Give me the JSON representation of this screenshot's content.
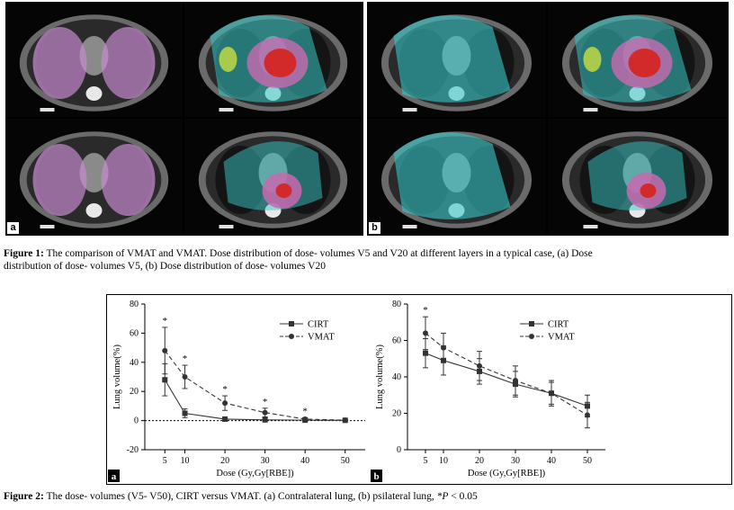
{
  "figure1": {
    "panels": [
      {
        "label": "a",
        "tiles": 4
      },
      {
        "label": "b",
        "tiles": 4
      }
    ],
    "caption_label": "Figure 1:",
    "caption_line1": " The comparison of VMAT and VMAT. Dose distribution of dose-   volumes V5 and V20 at different layers in a typical case, (a) Dose",
    "caption_line2": "distribution of dose-   volumes V5, (b) Dose distribution of dose-   volumes V20"
  },
  "figure2": {
    "caption_label": "Figure 2:",
    "caption_text": " The dose-   volumes (V5-   V50), CIRT versus VMAT. (a) Contralateral lung, (b) psilateral lung, ",
    "caption_p": "*P",
    "caption_tail": " < 0.05"
  },
  "chart_data": [
    {
      "type": "line",
      "panel_label": "a",
      "xlabel": "Dose (Gy,Gy[RBE])",
      "ylabel": "Lung volume(%)",
      "x": [
        5,
        10,
        20,
        30,
        40,
        50
      ],
      "xlim": [
        0,
        55
      ],
      "ylim": [
        -20,
        80
      ],
      "yticks": [
        -20,
        0,
        20,
        40,
        60,
        80
      ],
      "xticks": [
        5,
        10,
        20,
        30,
        40,
        50
      ],
      "legend": "top-right",
      "reference_line": 0,
      "significance_marks": [
        "*",
        "*",
        "*",
        "*",
        "*",
        ""
      ],
      "series": [
        {
          "name": "CIRT",
          "marker": "square",
          "style": "solid",
          "values": [
            28,
            5,
            1,
            0.5,
            0.3,
            0.2
          ],
          "err": [
            11,
            3,
            1,
            0.5,
            0.3,
            0.2
          ]
        },
        {
          "name": "VMAT",
          "marker": "circle",
          "style": "dashed",
          "values": [
            48,
            30,
            12,
            5.5,
            1,
            0.3
          ],
          "err": [
            16,
            8,
            5,
            3,
            1,
            0.3
          ]
        }
      ]
    },
    {
      "type": "line",
      "panel_label": "b",
      "xlabel": "Dose (Gy,Gy[RBE])",
      "ylabel": "Lung volume(%)",
      "x": [
        5,
        10,
        20,
        30,
        40,
        50
      ],
      "xlim": [
        0,
        55
      ],
      "ylim": [
        0,
        80
      ],
      "yticks": [
        0,
        20,
        40,
        60,
        80
      ],
      "xticks": [
        5,
        10,
        20,
        30,
        40,
        50
      ],
      "legend": "top-right",
      "significance_marks": [
        "*",
        "",
        "",
        "",
        "",
        ""
      ],
      "series": [
        {
          "name": "CIRT",
          "marker": "square",
          "style": "solid",
          "values": [
            53,
            49,
            43,
            36,
            31,
            24
          ],
          "err": [
            8,
            8,
            7,
            7,
            6,
            6
          ]
        },
        {
          "name": "VMAT",
          "marker": "circle",
          "style": "dashed",
          "values": [
            64,
            56,
            46,
            38,
            31,
            19
          ],
          "err": [
            9,
            8,
            8,
            8,
            7,
            7
          ]
        }
      ]
    }
  ]
}
